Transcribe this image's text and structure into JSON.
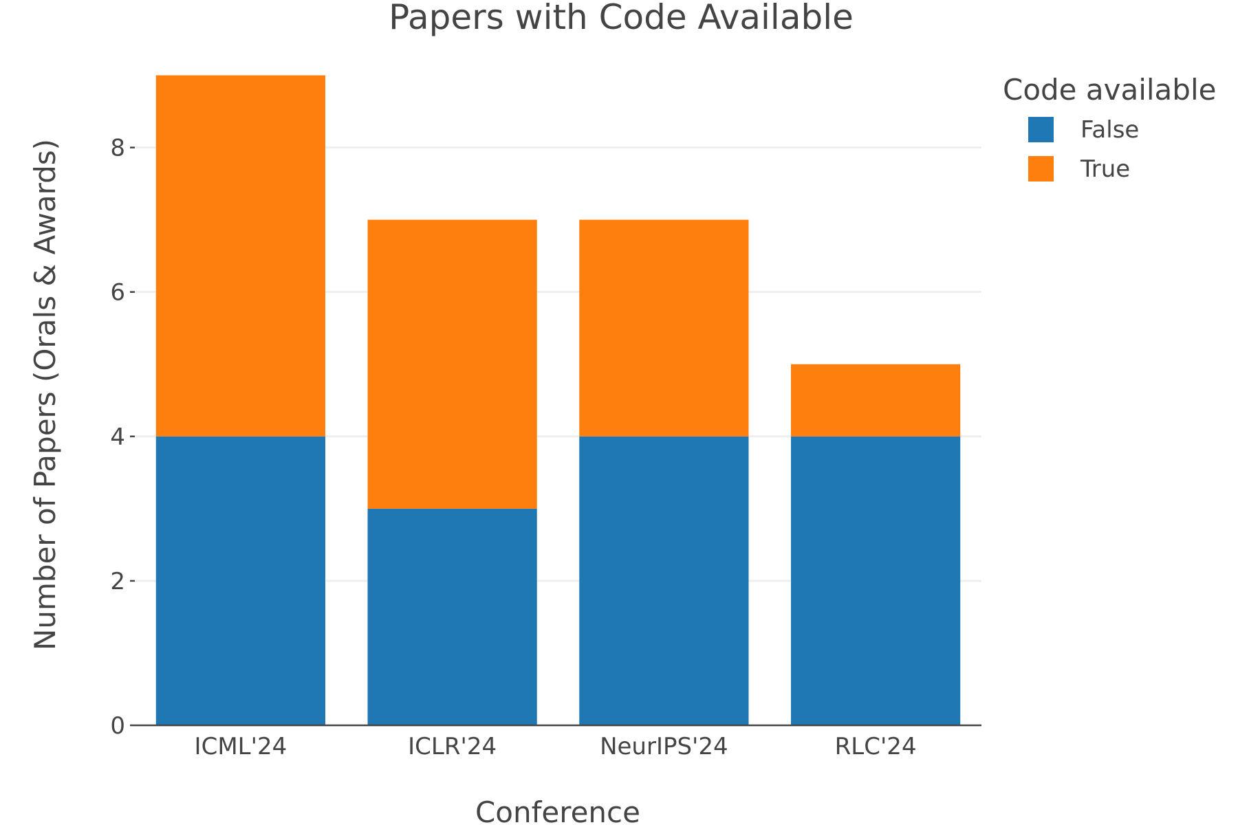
{
  "chart_data": {
    "type": "bar",
    "barmode": "stack",
    "title": "Papers with Code Available",
    "xlabel": "Conference",
    "ylabel": "Number of Papers (Orals & Awards)",
    "categories": [
      "ICML'24",
      "ICLR'24",
      "NeurIPS'24",
      "RLC'24"
    ],
    "ylim": [
      0,
      9.5
    ],
    "yticks": [
      0,
      2,
      4,
      6,
      8
    ],
    "grid": true,
    "legend": {
      "title": "Code available",
      "placement": "top-right"
    },
    "series": [
      {
        "name": "False",
        "color": "#1f77b4",
        "values": [
          4,
          3,
          4,
          4
        ]
      },
      {
        "name": "True",
        "color": "#ff7f0e",
        "values": [
          5,
          4,
          3,
          1
        ]
      }
    ]
  }
}
